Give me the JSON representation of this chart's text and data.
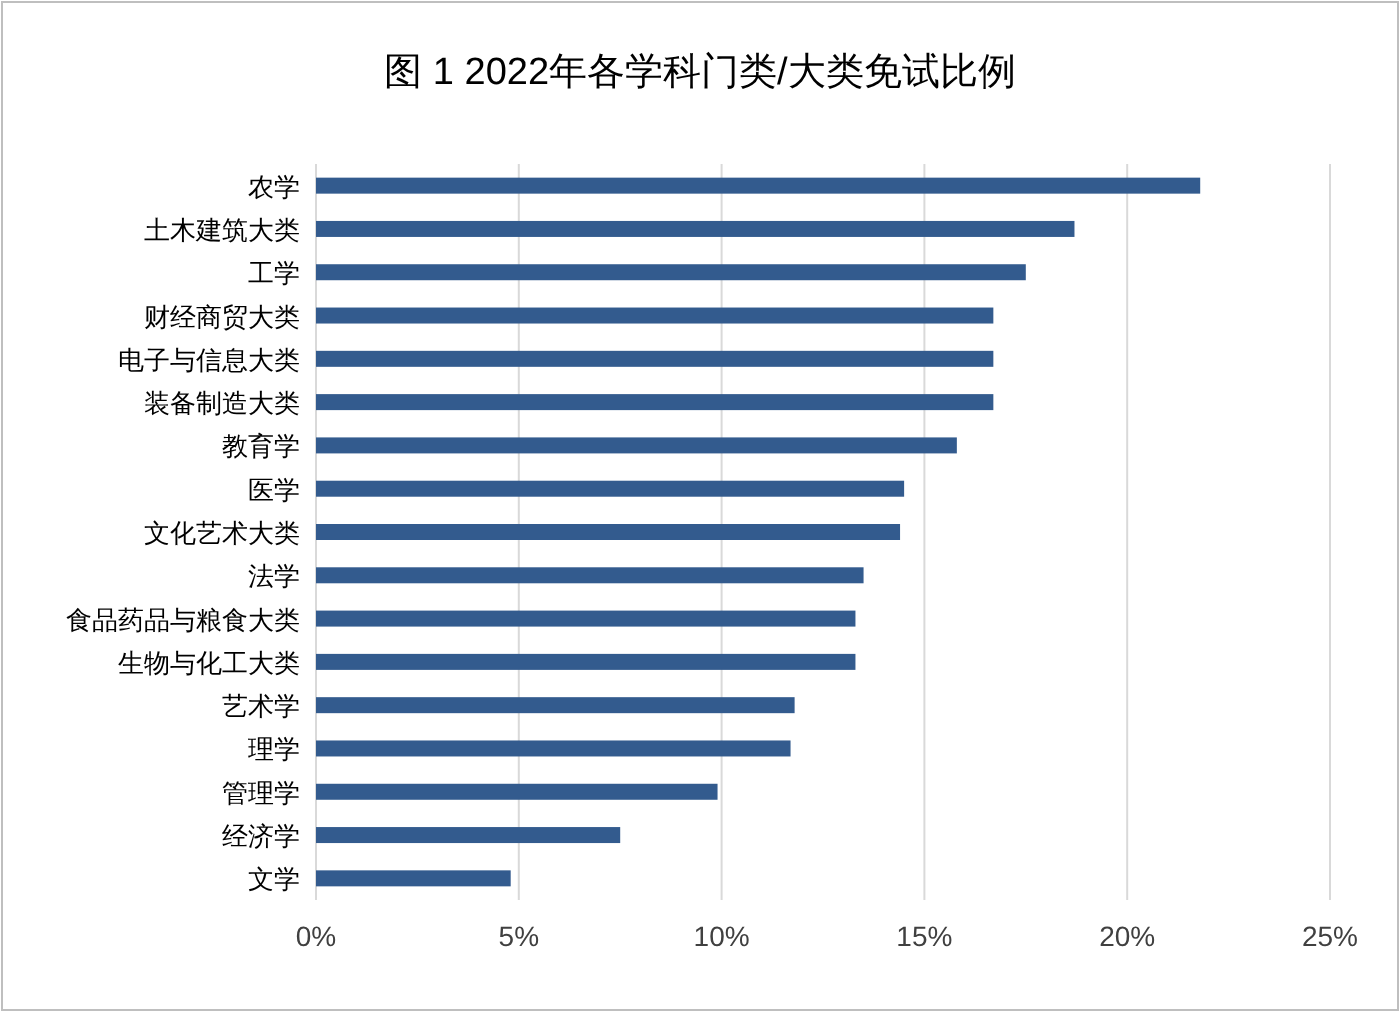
{
  "chart_data": {
    "type": "bar",
    "orientation": "horizontal",
    "title": "图 1 2022年各学科门类/大类免试比例",
    "categories": [
      "农学",
      "土木建筑大类",
      "工学",
      "财经商贸大类",
      "电子与信息大类",
      "装备制造大类",
      "教育学",
      "医学",
      "文化艺术大类",
      "法学",
      "食品药品与粮食大类",
      "生物与化工大类",
      "艺术学",
      "理学",
      "管理学",
      "经济学",
      "文学"
    ],
    "values": [
      21.8,
      18.7,
      17.5,
      16.7,
      16.7,
      16.7,
      15.8,
      14.5,
      14.4,
      13.5,
      13.3,
      13.3,
      11.8,
      11.7,
      9.9,
      7.5,
      4.8
    ],
    "color": "#335b8e",
    "xlim": [
      0,
      25
    ],
    "xticks": [
      {
        "value": 0,
        "label": "0%"
      },
      {
        "value": 5,
        "label": "5%"
      },
      {
        "value": 10,
        "label": "10%"
      },
      {
        "value": 15,
        "label": "15%"
      },
      {
        "value": 20,
        "label": "20%"
      },
      {
        "value": 25,
        "label": "25%"
      }
    ],
    "grid": "x"
  }
}
